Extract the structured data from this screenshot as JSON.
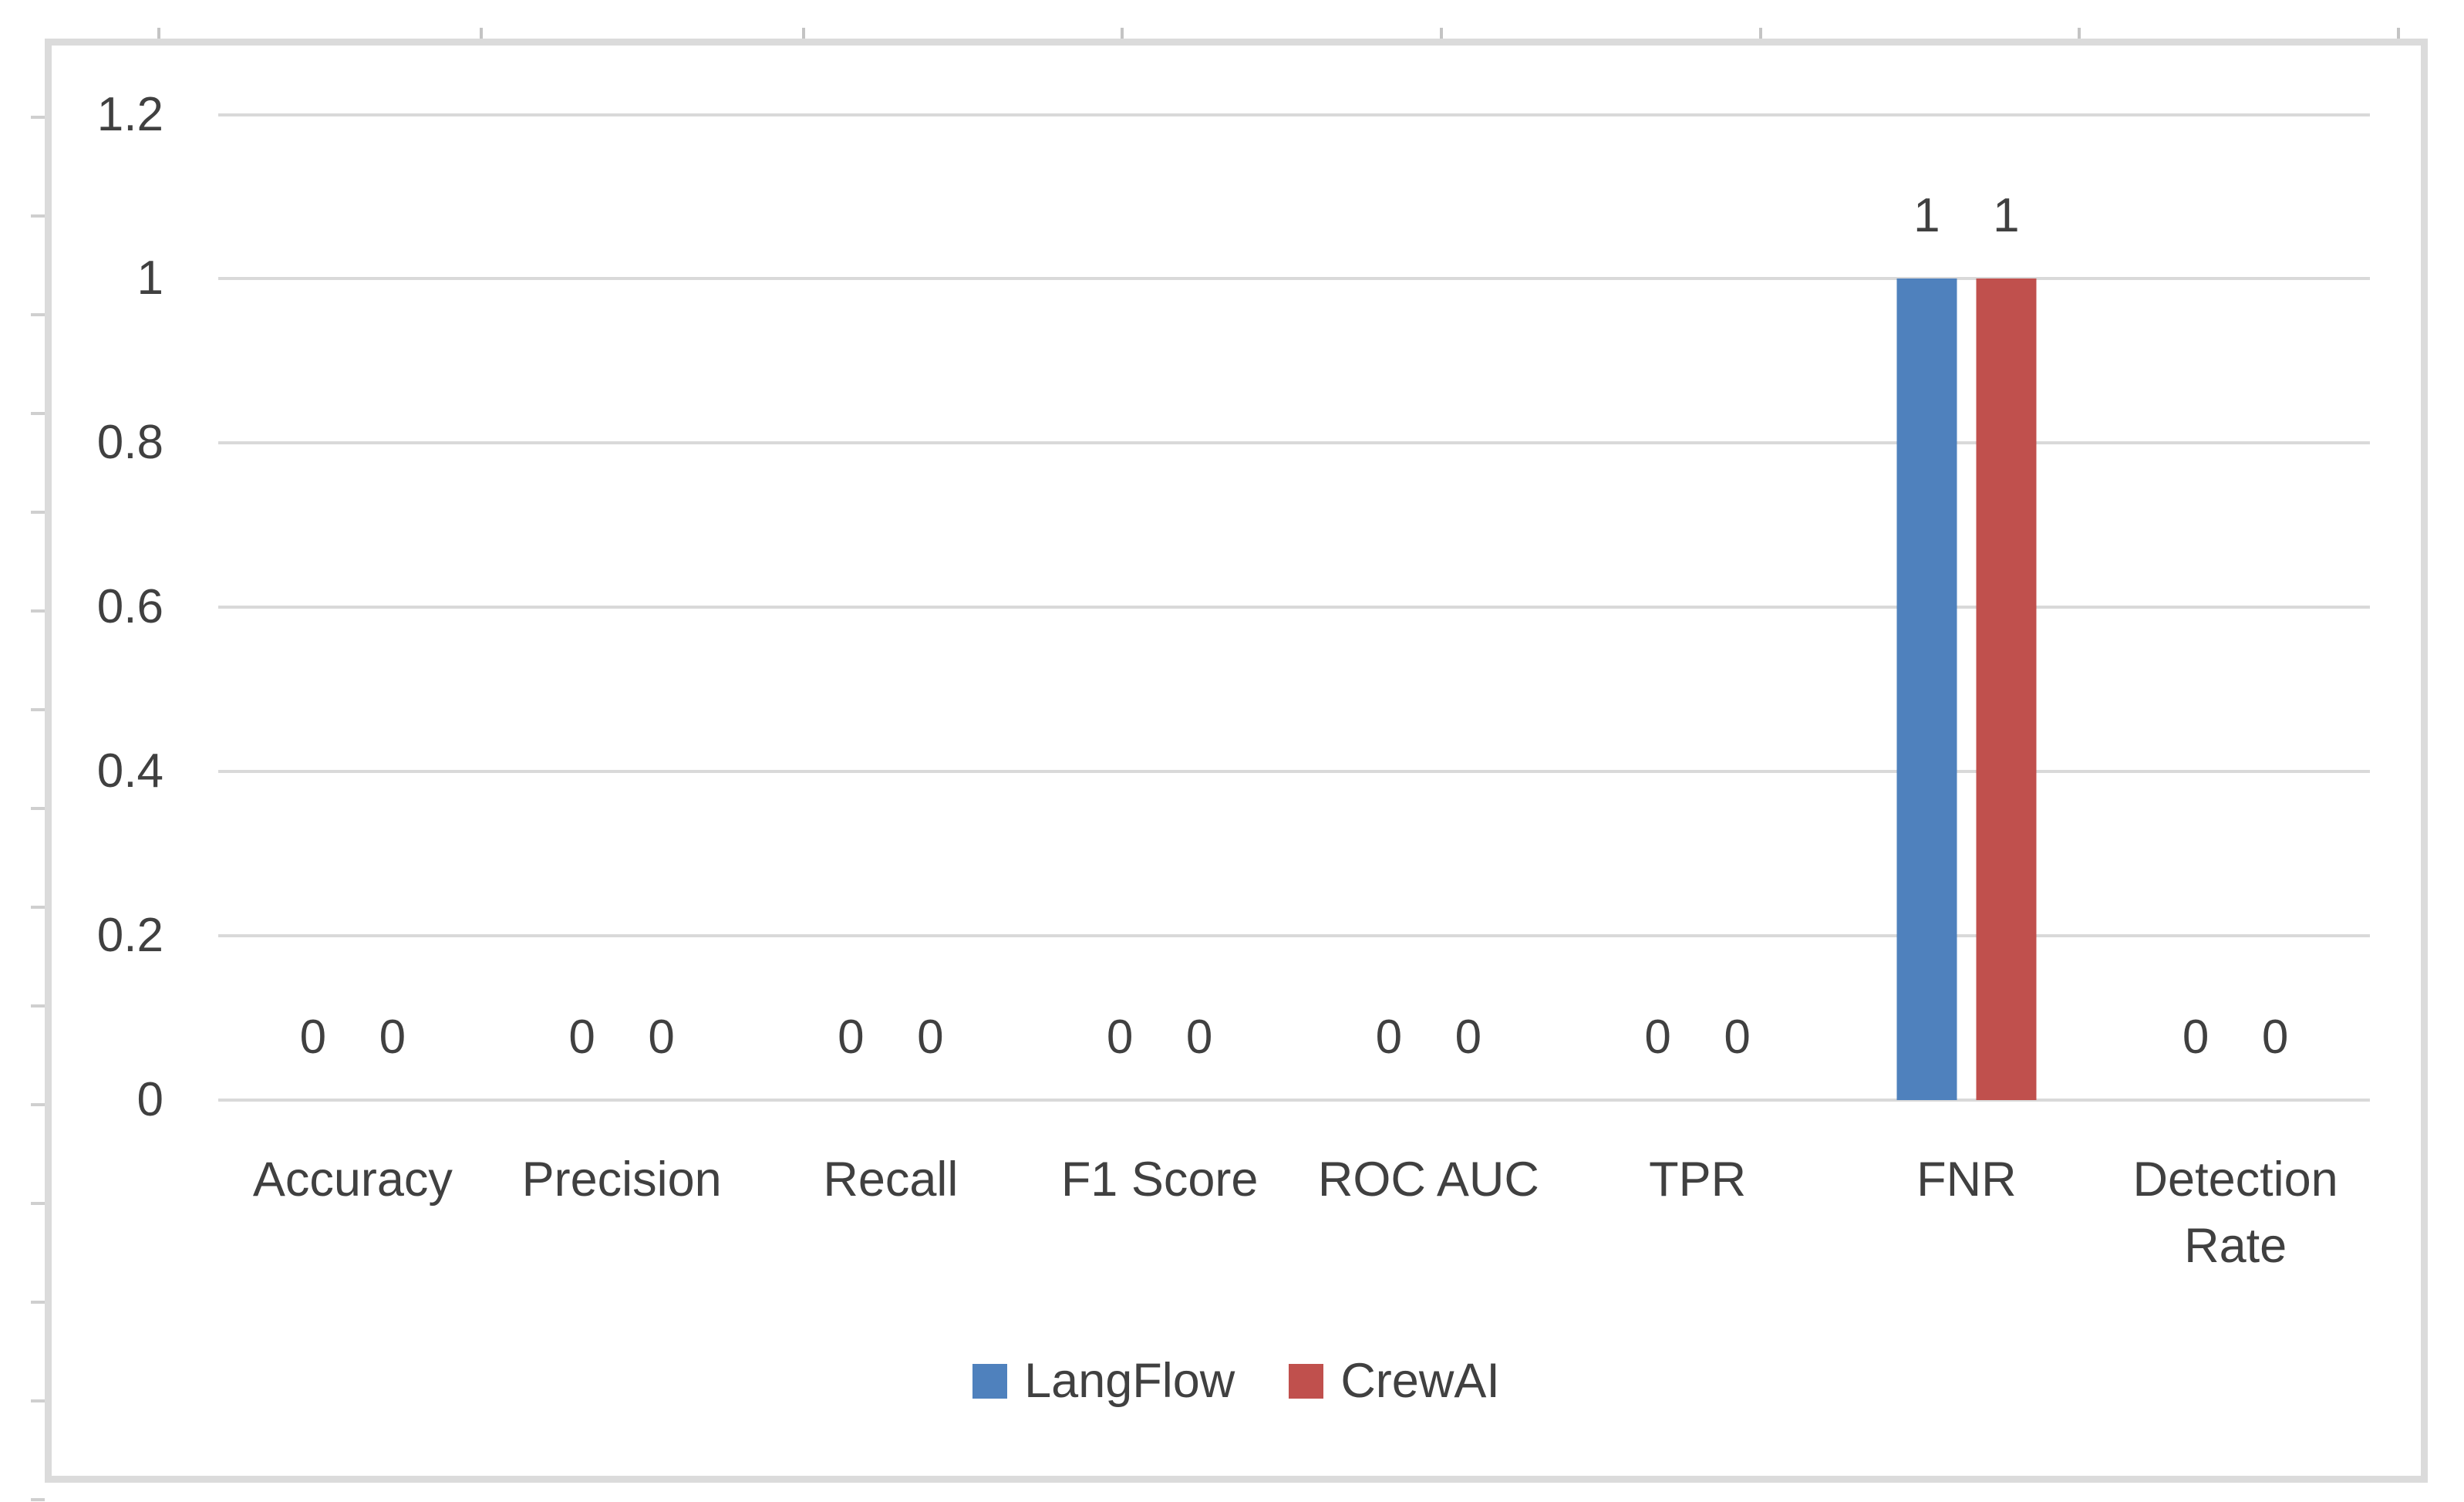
{
  "chart_data": {
    "type": "bar",
    "title": "",
    "categories": [
      "Accuracy",
      "Precision",
      "Recall",
      "F1 Score",
      "ROC AUC",
      "TPR",
      "FNR",
      "Detection Rate"
    ],
    "series": [
      {
        "name": "LangFlow",
        "color": "#4F81BD",
        "values": [
          0,
          0,
          0,
          0,
          0,
          0,
          1,
          0
        ]
      },
      {
        "name": "CrewAI",
        "color": "#C0504D",
        "values": [
          0,
          0,
          0,
          0,
          0,
          0,
          1,
          0
        ]
      }
    ],
    "ylim": [
      0,
      1.2
    ],
    "yticks": [
      0,
      0.2,
      0.4,
      0.6,
      0.8,
      1,
      1.2
    ],
    "ytick_labels": [
      "0",
      "0.2",
      "0.4",
      "0.6",
      "0.8",
      "1",
      "1.2"
    ],
    "grid": "horizontal",
    "gridline_color": "#D9D9D9",
    "data_labels": true,
    "legend_position": "bottom"
  },
  "colors": {
    "axis_text": "#404040",
    "chart_border": "#DBDBDB",
    "background": "#FFFFFF"
  }
}
